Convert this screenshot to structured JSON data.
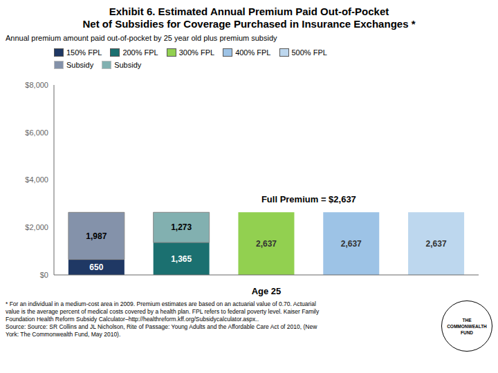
{
  "chart_data": {
    "type": "bar",
    "stacked": true,
    "data_labels": true,
    "grid": false,
    "tick_labels": "y",
    "legend": "upper left",
    "title": "Exhibit 6. Estimated Annual Premium Paid Out-of-Pocket\nNet of Subsidies for Coverage Purchased in Insurance Exchanges *",
    "subtitle": "Annual premium amount paid out-of-pocket by 25 year old plus premium subsidy",
    "xlabel": "Age 25",
    "categories": [
      "150% FPL",
      "200% FPL",
      "300% FPL",
      "400% FPL",
      "500% FPL"
    ],
    "series": [
      {
        "values": [
          650,
          1365,
          2637,
          2637,
          2637
        ],
        "value_labels": [
          "650",
          "1,365",
          "2,637",
          "2,637",
          "2,637"
        ],
        "colors": [
          "#1F3864",
          "#1B7070",
          "#92D050",
          "#9DC3E6",
          "#BDD7EE"
        ]
      },
      {
        "name": "Subsidy",
        "values": [
          1987,
          1273,
          0,
          0,
          0
        ],
        "value_labels": [
          "1,987",
          "1,273",
          null,
          null,
          null
        ],
        "colors": [
          "#1F3864",
          "#1B7070",
          "#92D050",
          "#9DC3E6",
          "#BDD7EE"
        ]
      }
    ],
    "ylim": [
      0,
      8000
    ],
    "yticks": [
      {
        "value": 0,
        "label": "$0"
      },
      {
        "value": 2000,
        "label": "$2,000"
      },
      {
        "value": 4000,
        "label": "$4,000"
      },
      {
        "value": 6000,
        "label": "$6,000"
      },
      {
        "value": 8000,
        "label": "$8,000"
      }
    ],
    "annotations": [
      {
        "text": "Full Premium = $2,637",
        "y": 2637
      }
    ],
    "footnote": "* For an individual in a medium-cost area in 2009. Premium estimates are based on an actuarial value of 0.70. Actuarial\nvalue is the average percent of medical costs covered by a health plan. FPL refers to federal poverty level. Kaiser Family\nFoundation Health Reform Subsidy Calculator–http://healthreform.kff.org/Subsidycalculator.aspx..\nSource: Source: SR Collins and JL Nicholson, Rite of Passage: Young Adults and the Affordable Care Act of 2010, (New\nYork: The Commonwealth Fund, May 2010).",
    "logo": "THE\nCOMMONWEALTH\nFUND"
  }
}
